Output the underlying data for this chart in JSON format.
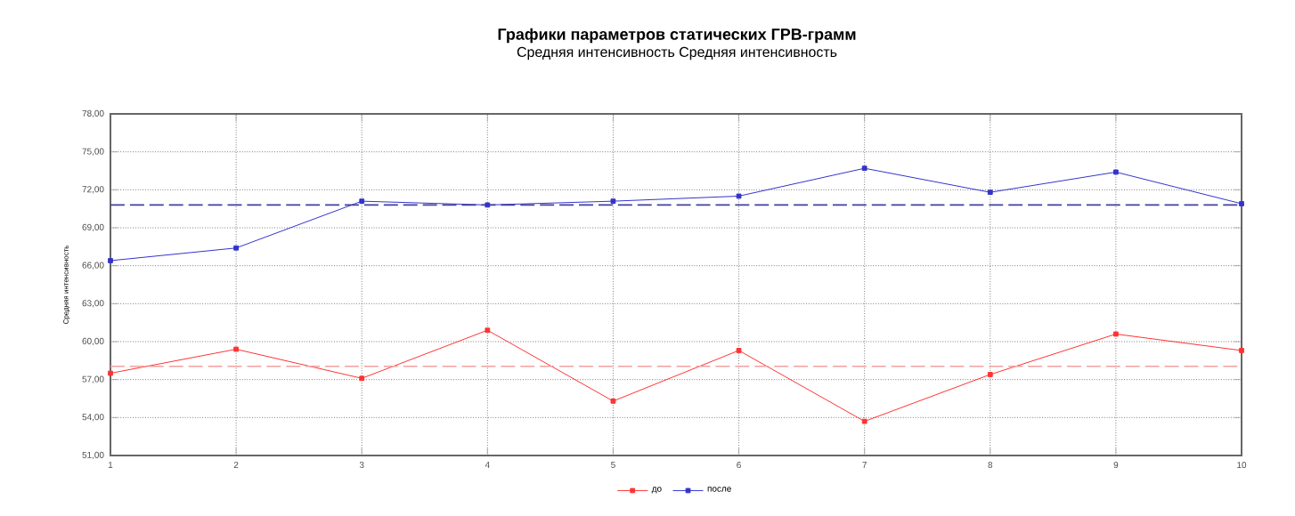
{
  "chart_data": {
    "type": "line",
    "title": "Графики параметров статических ГРВ-грамм",
    "subtitle": "Средняя интенсивность Средняя интенсивность",
    "ylabel": "Средняя интенсивность",
    "x": [
      1,
      2,
      3,
      4,
      5,
      6,
      7,
      8,
      9,
      10
    ],
    "series": [
      {
        "name": "до",
        "color": "#ff3333",
        "values": [
          57.5,
          59.4,
          57.1,
          60.9,
          55.3,
          59.3,
          53.7,
          57.4,
          60.6,
          59.3
        ]
      },
      {
        "name": "после",
        "color": "#3333cc",
        "values": [
          66.4,
          67.4,
          71.1,
          70.8,
          71.1,
          71.5,
          73.7,
          71.8,
          73.4,
          70.9
        ]
      }
    ],
    "ref_lines": [
      {
        "axis": "y",
        "value": 58.05,
        "color": "#f4a0a0",
        "line_style": "dashed"
      },
      {
        "axis": "y",
        "value": 70.8,
        "color": "#4040a0",
        "line_style": "dashed"
      }
    ],
    "xlim": [
      1,
      10
    ],
    "xticks": [
      1,
      2,
      3,
      4,
      5,
      6,
      7,
      8,
      9,
      10
    ],
    "ylim": [
      51,
      78
    ],
    "yticks": [
      {
        "value": 51,
        "label": "51,00"
      },
      {
        "value": 54,
        "label": "54,00"
      },
      {
        "value": 57,
        "label": "57,00"
      },
      {
        "value": 60,
        "label": "60,00"
      },
      {
        "value": 63,
        "label": "63,00"
      },
      {
        "value": 66,
        "label": "66,00"
      },
      {
        "value": 69,
        "label": "69,00"
      },
      {
        "value": 72,
        "label": "72,00"
      },
      {
        "value": 75,
        "label": "75,00"
      },
      {
        "value": 78,
        "label": "78,00"
      }
    ],
    "grid": true,
    "legend": "bottom",
    "marker": "square",
    "line_style": "solid"
  }
}
